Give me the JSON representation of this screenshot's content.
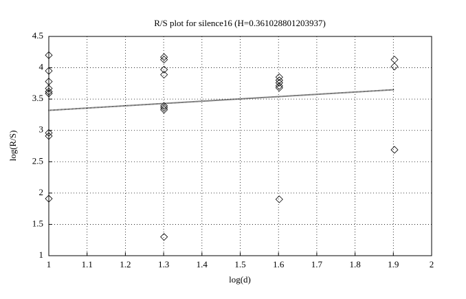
{
  "chart_data": {
    "type": "scatter",
    "title": "R/S plot for silence16 (H=0.361028801203937)",
    "x_label": "log(d)",
    "y_label": "log(R/S)",
    "points": {
      "x": [
        1,
        1,
        1,
        1,
        1,
        1,
        1,
        1,
        1,
        1.301,
        1.301,
        1.301,
        1.301,
        1.301,
        1.301,
        1.301,
        1.301,
        1.602,
        1.602,
        1.602,
        1.602,
        1.602,
        1.602,
        1.903,
        1.903,
        1.903
      ],
      "values": [
        4.2,
        3.95,
        3.78,
        3.67,
        3.62,
        3.59,
        2.96,
        2.91,
        1.91,
        4.17,
        4.13,
        3.97,
        3.89,
        3.39,
        3.36,
        3.33,
        1.3,
        3.85,
        3.8,
        3.76,
        3.71,
        3.68,
        1.9,
        4.13,
        4.02,
        2.69
      ],
      "color": "#000000"
    },
    "fit": {
      "x": [
        1,
        1.903
      ],
      "values": [
        3.32,
        3.65
      ],
      "color": "#000000"
    },
    "xlim": [
      1,
      2
    ],
    "xticks": [
      1,
      1.1,
      1.2,
      1.3,
      1.4,
      1.5,
      1.6,
      1.7,
      1.8,
      1.9,
      2
    ],
    "ylim": [
      1,
      4.5
    ],
    "yticks": [
      1,
      1.5,
      2,
      2.5,
      3,
      3.5,
      4,
      4.5
    ],
    "grid": true
  }
}
